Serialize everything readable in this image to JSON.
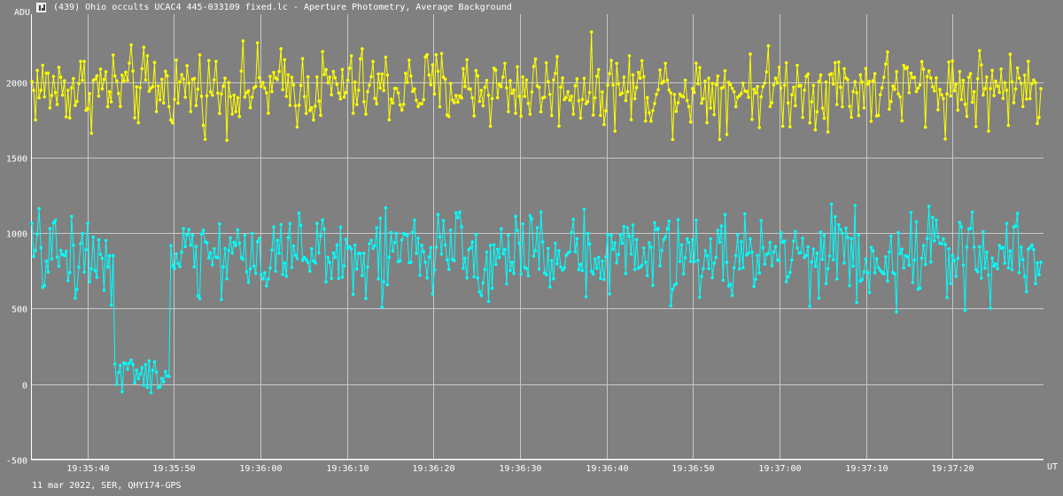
{
  "window": {
    "title": "(439) Ohio occults UCAC4 445-033109 fixed.lc - Aperture Photometry, Average Background",
    "icon": "light-curve-app-icon"
  },
  "footer": {
    "info": "11 mar 2022, SER, QHY174-GPS"
  },
  "chart_data": {
    "type": "line",
    "ylabel": "ADU",
    "xlabel": "UT",
    "ylim": [
      -500,
      2450
    ],
    "yticks": [
      -500,
      0,
      500,
      1000,
      1500,
      2000
    ],
    "xlim_seconds": [
      33.5,
      150.5
    ],
    "x_tick_labels": [
      "19:35:40",
      "19:35:50",
      "19:36:00",
      "19:36:10",
      "19:36:20",
      "19:36:30",
      "19:36:40",
      "19:36:50",
      "19:37:00",
      "19:37:10",
      "19:37:20"
    ],
    "grid": true,
    "legend": "none",
    "colors": {
      "background": "#808080",
      "grid": "#c8c8c8",
      "axis": "#ffffff",
      "text": "#ffffff"
    },
    "series": [
      {
        "color": "#ffff00",
        "base": 1960,
        "amp": 300,
        "x_start": 33.6,
        "x_end": 150.2,
        "n": 560
      },
      {
        "color": "#00ffff",
        "base": 860,
        "amp": 330,
        "x_start": 33.6,
        "x_end": 150.2,
        "n": 560,
        "occultation": {
          "start": 43.0,
          "end": 49.6,
          "level": 50
        }
      }
    ]
  }
}
